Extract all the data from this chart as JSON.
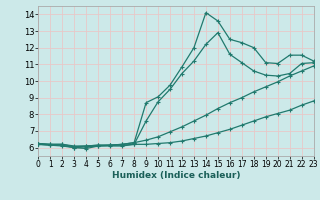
{
  "xlabel": "Humidex (Indice chaleur)",
  "xlim": [
    0,
    23
  ],
  "ylim": [
    5.5,
    14.5
  ],
  "xticks": [
    0,
    1,
    2,
    3,
    4,
    5,
    6,
    7,
    8,
    9,
    10,
    11,
    12,
    13,
    14,
    15,
    16,
    17,
    18,
    19,
    20,
    21,
    22,
    23
  ],
  "yticks": [
    6,
    7,
    8,
    9,
    10,
    11,
    12,
    13,
    14
  ],
  "background_color": "#cce9e9",
  "grid_color": "#e8f8f8",
  "line_color": "#217a6e",
  "line1_y": [
    6.2,
    6.15,
    6.15,
    6.0,
    5.95,
    6.1,
    6.1,
    6.1,
    6.2,
    7.6,
    8.75,
    9.5,
    10.45,
    11.2,
    12.2,
    12.9,
    11.6,
    11.1,
    10.6,
    10.35,
    10.3,
    10.45,
    11.05,
    11.1
  ],
  "line2_y": [
    6.25,
    6.2,
    6.2,
    6.05,
    6.1,
    6.15,
    6.15,
    6.2,
    6.3,
    8.7,
    9.05,
    9.75,
    10.85,
    12.0,
    14.1,
    13.6,
    12.5,
    12.3,
    12.0,
    11.1,
    11.05,
    11.55,
    11.55,
    11.2
  ],
  "line3_y": [
    6.25,
    6.2,
    6.2,
    6.1,
    6.1,
    6.15,
    6.15,
    6.15,
    6.2,
    6.2,
    6.25,
    6.3,
    6.4,
    6.55,
    6.7,
    6.9,
    7.1,
    7.35,
    7.6,
    7.85,
    8.05,
    8.25,
    8.55,
    8.8
  ],
  "line4_y": [
    6.2,
    6.15,
    6.1,
    6.0,
    6.05,
    6.1,
    6.15,
    6.2,
    6.3,
    6.45,
    6.65,
    6.95,
    7.25,
    7.6,
    7.95,
    8.35,
    8.7,
    9.0,
    9.35,
    9.65,
    9.95,
    10.3,
    10.6,
    10.9
  ]
}
